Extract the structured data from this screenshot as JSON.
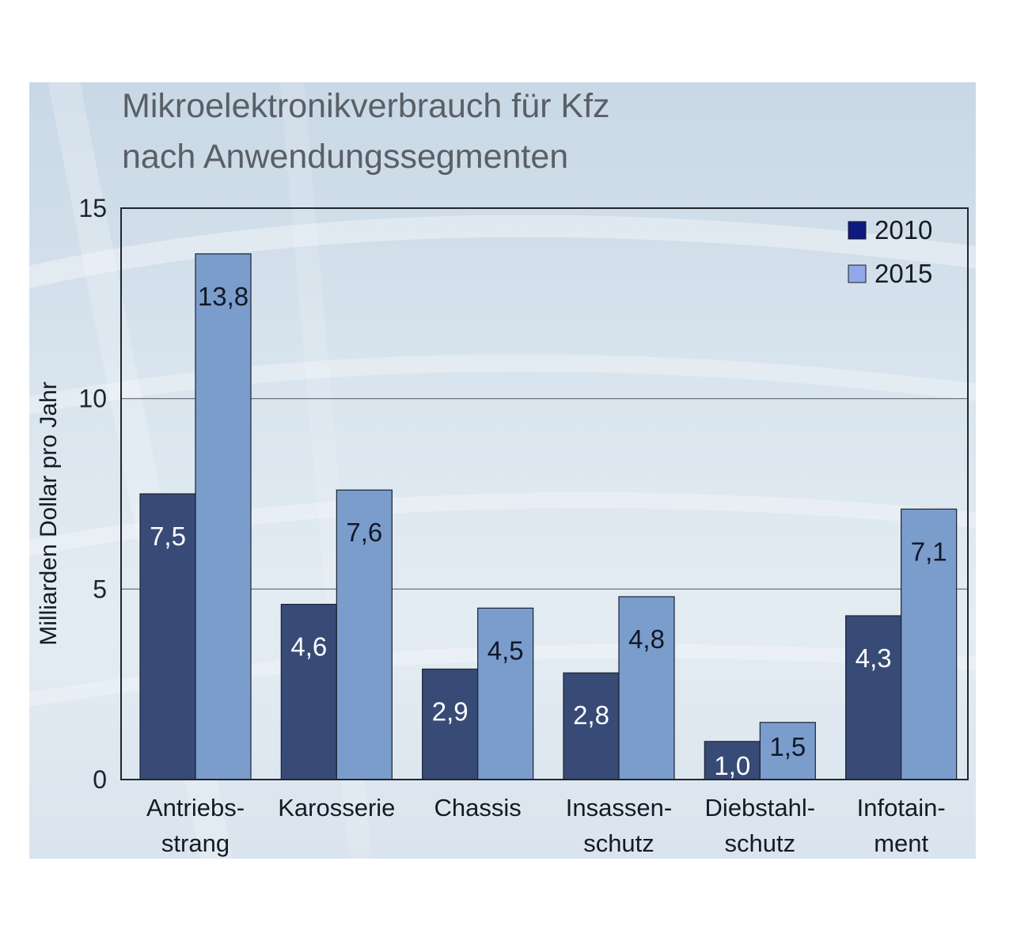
{
  "colors": {
    "series_2010": "#384b77",
    "series_2015": "#7a9dcc",
    "legend_2010": "#0e1a82",
    "legend_2015": "#8fa9e8",
    "grid": "#5f6872",
    "axis": "#20262e"
  },
  "chart_data": {
    "type": "bar",
    "title": [
      "Mikroelektronikverbrauch für Kfz",
      "nach Anwendungssegmenten"
    ],
    "ylabel": "Milliarden Dollar pro Jahr",
    "xlabel": "",
    "ylim": [
      0,
      15
    ],
    "yticks": [
      "0",
      "5",
      "10",
      "15"
    ],
    "ytick_values": [
      0,
      5,
      10,
      15
    ],
    "grid": true,
    "legend": "top-right",
    "categories": [
      [
        "Antriebs-",
        "strang"
      ],
      [
        "Karosserie"
      ],
      [
        "Chassis"
      ],
      [
        "Insassen-",
        "schutz"
      ],
      [
        "Diebstahl-",
        "schutz"
      ],
      [
        "Infotain-",
        "ment"
      ]
    ],
    "series": [
      {
        "name": "2010",
        "values": [
          7.5,
          4.6,
          2.9,
          2.8,
          1.0,
          4.3
        ],
        "labels": [
          "7,5",
          "4,6",
          "2,9",
          "2,8",
          "1,0",
          "4,3"
        ]
      },
      {
        "name": "2015",
        "values": [
          13.8,
          7.6,
          4.5,
          4.8,
          1.5,
          7.1
        ],
        "labels": [
          "13,8",
          "7,6",
          "4,5",
          "4,8",
          "1,5",
          "7,1"
        ]
      }
    ]
  }
}
